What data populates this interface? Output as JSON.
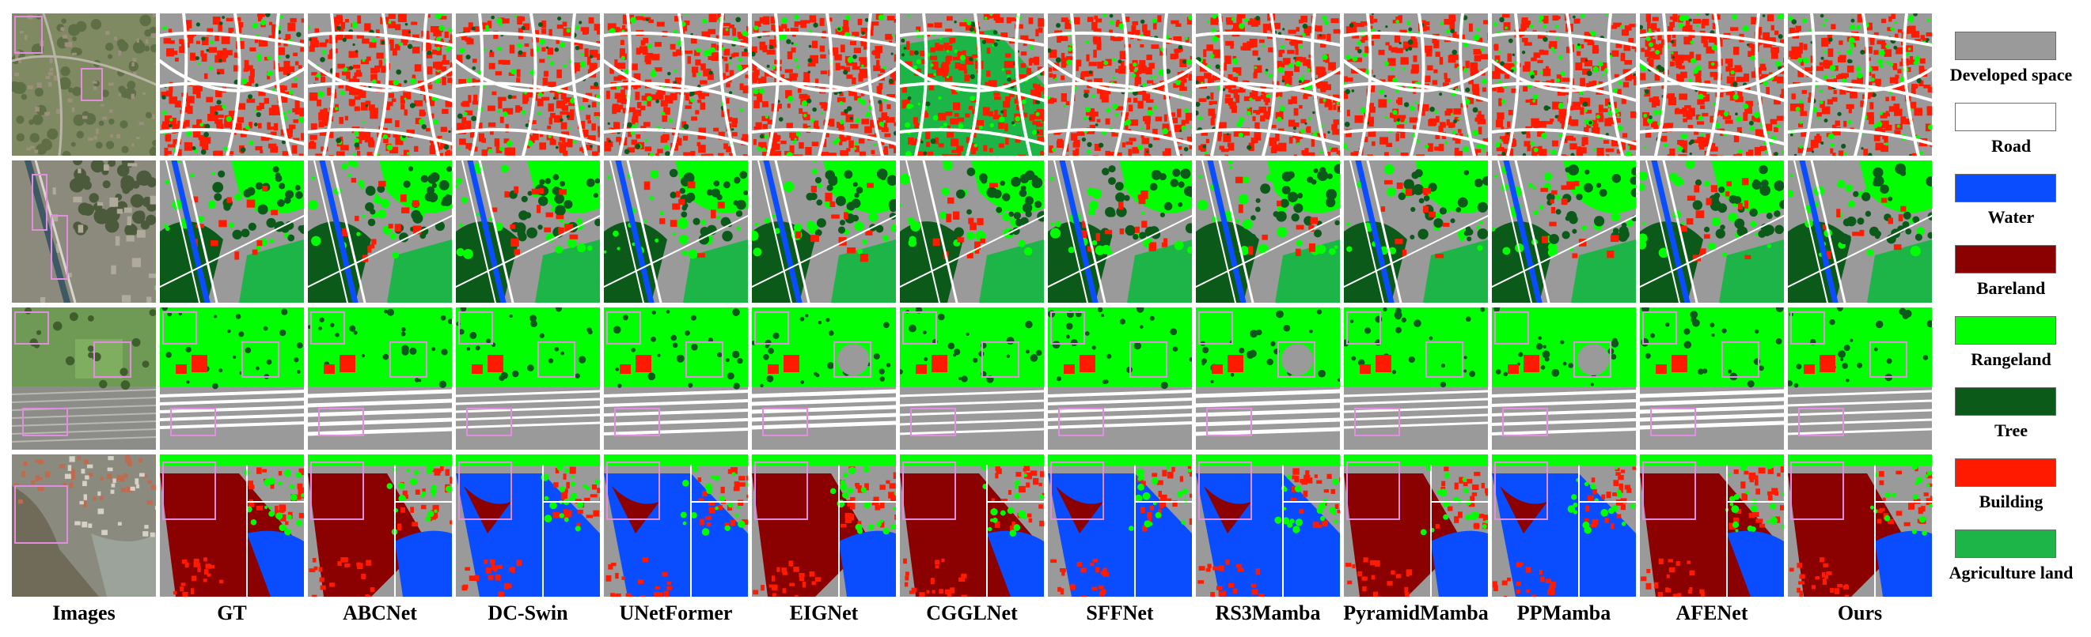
{
  "columns": [
    "Images",
    "GT",
    "ABCNet",
    "DC-Swin",
    "UNetFormer",
    "EIGNet",
    "CGGLNet",
    "SFFNet",
    "RS3Mamba",
    "PyramidMamba",
    "PPMamba",
    "AFENet",
    "Ours"
  ],
  "legend": [
    {
      "label": "Developed space",
      "color": "#9a9a9a"
    },
    {
      "label": "Road",
      "color": "#ffffff"
    },
    {
      "label": "Water",
      "color": "#0a4cff"
    },
    {
      "label": "Bareland",
      "color": "#8b0000"
    },
    {
      "label": "Rangeland",
      "color": "#00ff00"
    },
    {
      "label": "Tree",
      "color": "#0b5a1a"
    },
    {
      "label": "Building",
      "color": "#ff1a00"
    },
    {
      "label": "Agriculture land",
      "color": "#1db548"
    }
  ],
  "highlight_color": "#e28de0"
}
